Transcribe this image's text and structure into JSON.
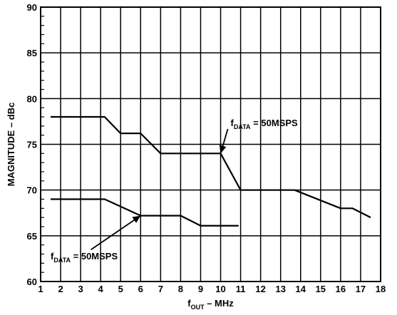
{
  "chart_data": {
    "type": "line",
    "xlabel": {
      "main": "f",
      "sub": "OUT",
      "rest": " – MHz"
    },
    "ylabel": "MAGNITUDE – dBc",
    "xlim": [
      1,
      18
    ],
    "ylim": [
      60,
      90
    ],
    "xticks": [
      1,
      2,
      3,
      4,
      5,
      6,
      7,
      8,
      9,
      10,
      11,
      12,
      13,
      14,
      15,
      16,
      17,
      18
    ],
    "yticks": [
      60,
      65,
      70,
      75,
      80,
      85,
      90
    ],
    "grid": true,
    "series": [
      {
        "x": [
          1.5,
          4.2,
          5.0,
          6.0,
          7.0,
          10.0,
          11.0,
          13.7,
          16.0,
          16.6,
          17.5
        ],
        "y": [
          78,
          78,
          76.2,
          76.2,
          74,
          74,
          70,
          70,
          68,
          68,
          67
        ]
      },
      {
        "x": [
          1.5,
          4.2,
          6.0,
          8.0,
          9.0,
          10.9
        ],
        "y": [
          69,
          69,
          67.2,
          67.2,
          66.1,
          66.1
        ]
      }
    ],
    "annotations": [
      {
        "main": "f",
        "sub": "DATA",
        "rest": " = 50MSPS",
        "x": 10.5,
        "y": 77,
        "arrow_to": [
          10.0,
          74
        ]
      },
      {
        "main": "f",
        "sub": "DATA",
        "rest": " = 50MSPS",
        "x": 1.5,
        "y": 62.4,
        "arrow_to": [
          6.0,
          67.2
        ]
      }
    ]
  }
}
